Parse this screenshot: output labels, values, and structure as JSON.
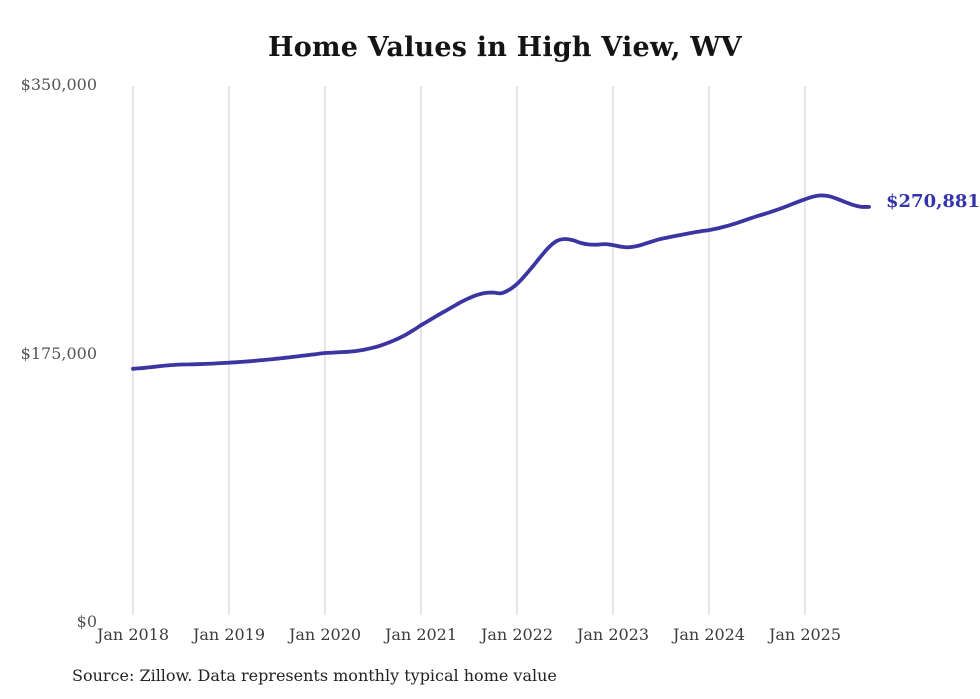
{
  "chart_data": {
    "type": "line",
    "title": "Home Values in High View, WV",
    "source_note": "Source: Zillow. Data represents monthly typical home value",
    "end_label": "$270,881",
    "latest_value": 270881,
    "x_frequency": "monthly",
    "x_start": "Jan 2018",
    "x_end": "Sep 2025",
    "x_tick_labels": [
      "Jan 2018",
      "Jan 2019",
      "Jan 2020",
      "Jan 2021",
      "Jan 2022",
      "Jan 2023",
      "Jan 2024",
      "Jan 2025"
    ],
    "y_tick_labels": [
      "$350,000",
      "$175,000",
      "$0"
    ],
    "ylim": [
      0,
      350000
    ],
    "grid": "vertical-only",
    "legend": "none",
    "line_color": "#3b35a2",
    "end_label_color": "#3434aa",
    "grid_color": "#cccccc",
    "values": [
      165000,
      165400,
      165900,
      166500,
      167100,
      167500,
      167800,
      167900,
      168000,
      168200,
      168400,
      168700,
      169000,
      169300,
      169700,
      170100,
      170600,
      171100,
      171600,
      172200,
      172800,
      173400,
      174000,
      174700,
      175300,
      175600,
      175900,
      176200,
      176700,
      177600,
      178800,
      180300,
      182200,
      184400,
      187000,
      190100,
      193500,
      196600,
      199700,
      202700,
      205700,
      208600,
      211200,
      213300,
      214600,
      214900,
      214400,
      216600,
      220500,
      226000,
      232200,
      238600,
      244600,
      248700,
      249900,
      249100,
      247300,
      246300,
      246200,
      246600,
      245900,
      244900,
      244500,
      245300,
      246800,
      248500,
      250000,
      251100,
      252100,
      253100,
      254100,
      255000,
      255700,
      256800,
      258100,
      259600,
      261300,
      263100,
      264800,
      266400,
      268100,
      269900,
      271900,
      274000,
      275900,
      277600,
      278400,
      277900,
      276200,
      274100,
      272200,
      271000,
      270881
    ]
  }
}
